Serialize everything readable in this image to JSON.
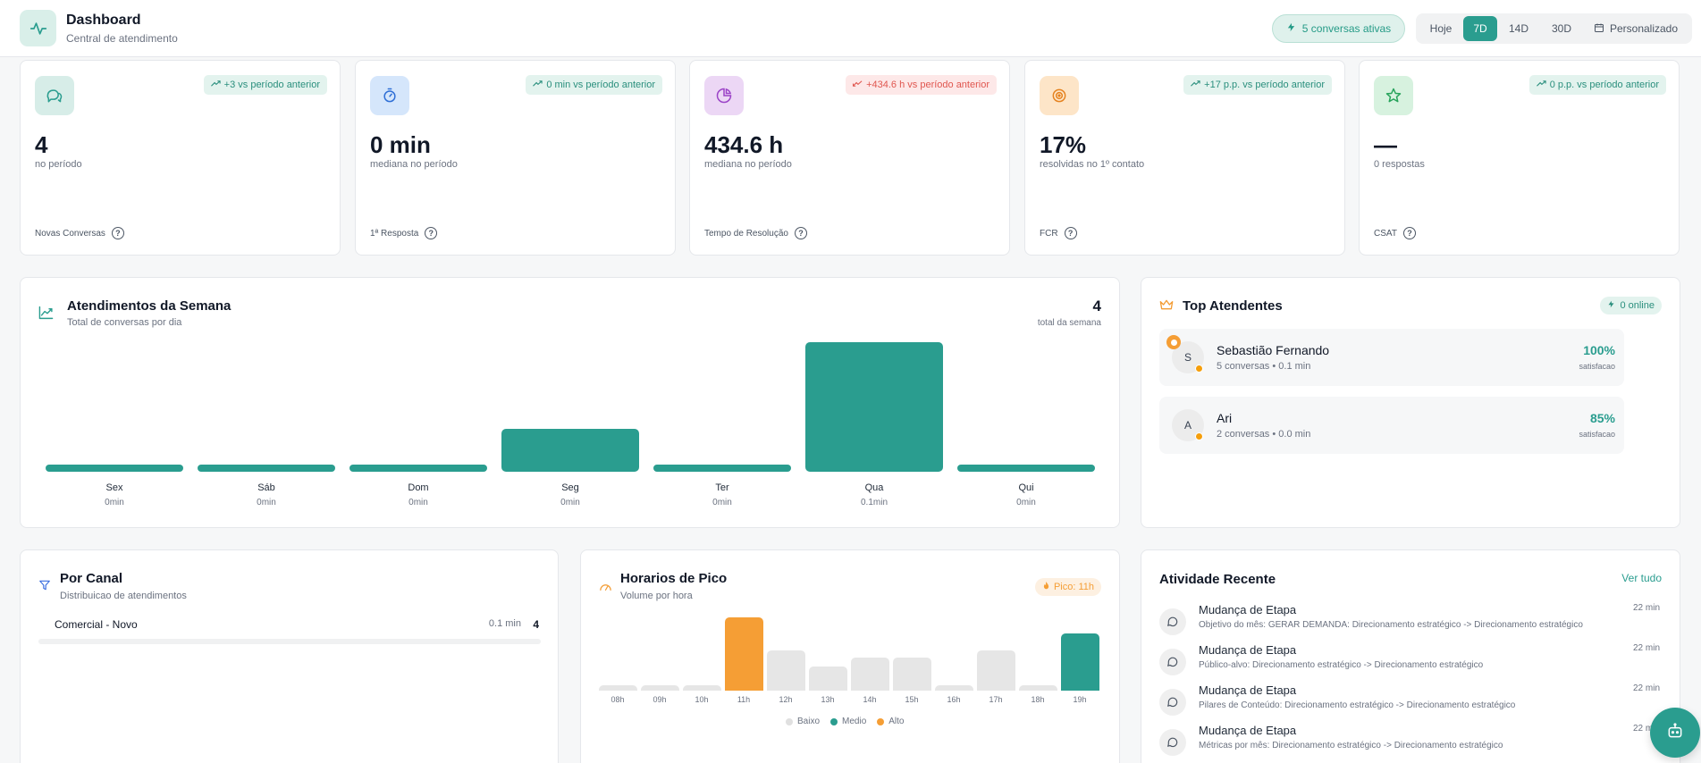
{
  "header": {
    "title": "Dashboard",
    "subtitle": "Central de atendimento",
    "active_badge": "5 conversas ativas",
    "periods": [
      "Hoje",
      "7D",
      "14D",
      "30D"
    ],
    "custom_label": "Personalizado",
    "selected_period": "7D"
  },
  "kpis": [
    {
      "value": "4",
      "desc": "no período",
      "label": "Novas Conversas",
      "trend": "+3 vs período anterior",
      "trend_dir": "up",
      "icon": "chat-icon"
    },
    {
      "value": "0 min",
      "desc": "mediana no período",
      "label": "1ª Resposta",
      "trend": "0 min vs período anterior",
      "trend_dir": "up",
      "icon": "stopwatch-icon"
    },
    {
      "value": "434.6 h",
      "desc": "mediana no período",
      "label": "Tempo de Resolução",
      "trend": "+434.6 h vs período anterior",
      "trend_dir": "down",
      "icon": "pie-icon"
    },
    {
      "value": "17%",
      "desc": "resolvidas no 1º contato",
      "label": "FCR",
      "trend": "+17 p.p. vs período anterior",
      "trend_dir": "up",
      "icon": "target-icon"
    },
    {
      "value": "—",
      "desc": "0 respostas",
      "label": "CSAT",
      "trend": "0 p.p. vs período anterior",
      "trend_dir": "up",
      "icon": "star-icon"
    }
  ],
  "weekly": {
    "title": "Atendimentos da Semana",
    "subtitle": "Total de conversas por dia",
    "total": "4",
    "total_label": "total da semana"
  },
  "chart_data": {
    "type": "bar",
    "categories": [
      "Sex",
      "Sáb",
      "Dom",
      "Seg",
      "Ter",
      "Qua",
      "Qui"
    ],
    "values": [
      0,
      0,
      0,
      1,
      0,
      3,
      0
    ],
    "value_labels": [
      "0min",
      "0min",
      "0min",
      "0min",
      "0min",
      "0.1min",
      "0min"
    ]
  },
  "top": {
    "title": "Top Atendentes",
    "online_badge": "0 online",
    "attendants": [
      {
        "initial": "S",
        "name": "Sebastião Fernando",
        "meta": "5 conversas • 0.1 min",
        "pct": "100%",
        "sat_label": "satisfacao"
      },
      {
        "initial": "A",
        "name": "Ari",
        "meta": "2 conversas • 0.0 min",
        "pct": "85%",
        "sat_label": "satisfacao"
      }
    ]
  },
  "canal": {
    "title": "Por Canal",
    "subtitle": "Distribuicao de atendimentos",
    "rows": [
      {
        "name": "Comercial - Novo",
        "time": "0.1 min",
        "count": "4"
      }
    ]
  },
  "pico": {
    "title": "Horarios de Pico",
    "subtitle": "Volume por hora",
    "badge": "Pico: 11h",
    "hours": [
      "08h",
      "09h",
      "10h",
      "11h",
      "12h",
      "13h",
      "14h",
      "15h",
      "16h",
      "17h",
      "18h",
      "19h"
    ],
    "levels": [
      0.07,
      0.07,
      0.07,
      1.0,
      0.55,
      0.33,
      0.45,
      0.45,
      0.07,
      0.55,
      0.07,
      0.78
    ],
    "intensity": [
      "low",
      "low",
      "low",
      "high",
      "low",
      "low",
      "low",
      "low",
      "low",
      "low",
      "low",
      "medium"
    ],
    "legend": [
      "Baixo",
      "Medio",
      "Alto"
    ],
    "colors": {
      "low": "#e6e6e6",
      "medium": "#2a9d8f",
      "high": "#f59e35"
    }
  },
  "activity": {
    "title": "Atividade Recente",
    "see_all": "Ver tudo",
    "items": [
      {
        "title": "Mudança de Etapa",
        "desc": "Objetivo do mês: GERAR DEMANDA: Direcionamento estratégico -> Direcionamento estratégico",
        "time": "22 min"
      },
      {
        "title": "Mudança de Etapa",
        "desc": "Público-alvo: Direcionamento estratégico -> Direcionamento estratégico",
        "time": "22 min"
      },
      {
        "title": "Mudança de Etapa",
        "desc": "Pilares de Conteúdo: Direcionamento estratégico -> Direcionamento estratégico",
        "time": "22 min"
      },
      {
        "title": "Mudança de Etapa",
        "desc": "Métricas por mês: Direcionamento estratégico -> Direcionamento estratégico",
        "time": "22 min"
      }
    ]
  },
  "accent_color": "#2a9d8f"
}
